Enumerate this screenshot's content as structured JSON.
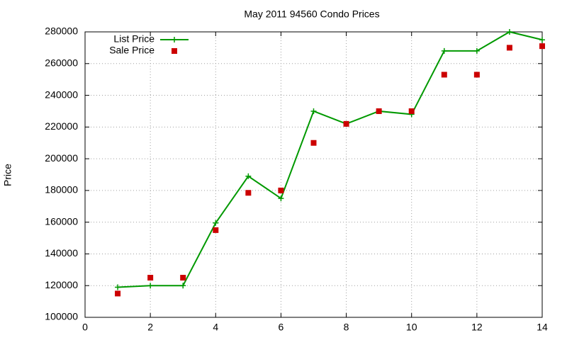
{
  "chart_data": {
    "type": "line",
    "title": "May 2011 94560 Condo Prices",
    "y_label": "Price",
    "x": [
      1,
      2,
      3,
      4,
      5,
      6,
      7,
      8,
      9,
      10,
      11,
      12,
      13,
      14
    ],
    "series": [
      {
        "name": "List Price",
        "color": "#009900",
        "mode": "lines+markers",
        "values": [
          119000,
          120000,
          120000,
          159500,
          189000,
          175000,
          230000,
          222000,
          230000,
          228000,
          268000,
          268000,
          280000,
          275000
        ]
      },
      {
        "name": "Sale Price",
        "color": "#cc0000",
        "mode": "markers",
        "values": [
          115000,
          125000,
          125000,
          155000,
          178500,
          180000,
          210000,
          222000,
          230000,
          230000,
          253000,
          253000,
          270000,
          271000
        ]
      }
    ],
    "xlim": [
      0,
      14
    ],
    "xticks": [
      0,
      2,
      4,
      6,
      8,
      10,
      12,
      14
    ],
    "ylim": [
      100000,
      280000
    ],
    "yticks": [
      100000,
      120000,
      140000,
      160000,
      180000,
      200000,
      220000,
      240000,
      260000,
      280000
    ],
    "grid": true,
    "legend": "top-left"
  }
}
